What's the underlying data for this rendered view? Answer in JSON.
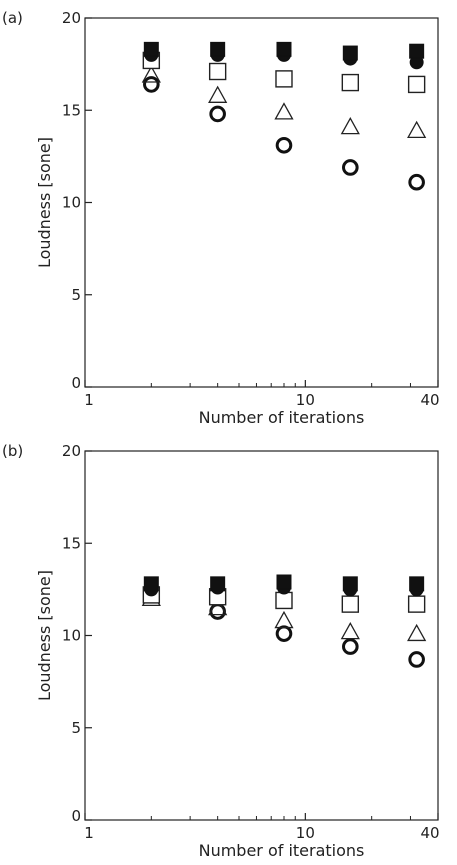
{
  "chart_data": [
    {
      "type": "scatter",
      "panel_label": "(a)",
      "xlabel": "Number of iterations",
      "ylabel": "Loudness [sone]",
      "xscale": "log",
      "xlim": [
        1,
        40
      ],
      "ylim": [
        0,
        20
      ],
      "xticks": [
        1,
        10,
        40
      ],
      "yticks": [
        0,
        5,
        10,
        15,
        20
      ],
      "xtick_labels": [
        "1",
        "10",
        "40"
      ],
      "ytick_labels": [
        "0",
        "5",
        "10",
        "15",
        "20"
      ],
      "x": [
        2,
        4,
        8,
        16,
        32
      ],
      "series": [
        {
          "marker": "filled-square",
          "values": [
            18.3,
            18.3,
            18.3,
            18.1,
            18.2
          ]
        },
        {
          "marker": "filled-circle",
          "values": [
            18.0,
            18.0,
            18.0,
            17.8,
            17.6
          ]
        },
        {
          "marker": "open-square",
          "values": [
            17.7,
            17.1,
            16.7,
            16.5,
            16.4
          ]
        },
        {
          "marker": "open-triangle",
          "values": [
            16.9,
            15.8,
            14.9,
            14.1,
            13.9
          ]
        },
        {
          "marker": "open-circle",
          "values": [
            16.4,
            14.8,
            13.1,
            11.9,
            11.1
          ]
        }
      ]
    },
    {
      "type": "scatter",
      "panel_label": "(b)",
      "xlabel": "Number of iterations",
      "ylabel": "Loudness [sone]",
      "xscale": "log",
      "xlim": [
        1,
        40
      ],
      "ylim": [
        0,
        20
      ],
      "xticks": [
        1,
        10,
        40
      ],
      "yticks": [
        0,
        5,
        10,
        15,
        20
      ],
      "xtick_labels": [
        "1",
        "10",
        "40"
      ],
      "ytick_labels": [
        "0",
        "5",
        "10",
        "15",
        "20"
      ],
      "x": [
        2,
        4,
        8,
        16,
        32
      ],
      "series": [
        {
          "marker": "filled-square",
          "values": [
            12.8,
            12.8,
            12.9,
            12.8,
            12.8
          ]
        },
        {
          "marker": "filled-circle",
          "values": [
            12.5,
            12.6,
            12.6,
            12.5,
            12.5
          ]
        },
        {
          "marker": "open-square",
          "values": [
            12.2,
            12.1,
            11.9,
            11.7,
            11.7
          ]
        },
        {
          "marker": "open-triangle",
          "values": [
            12.0,
            11.5,
            10.8,
            10.2,
            10.1
          ]
        },
        {
          "marker": "open-circle",
          "values": [
            12.3,
            11.3,
            10.1,
            9.4,
            8.7
          ]
        }
      ]
    }
  ]
}
